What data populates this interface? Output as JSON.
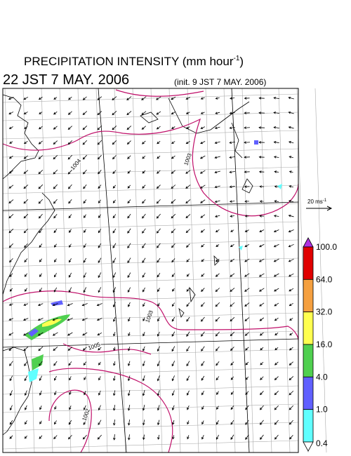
{
  "header": {
    "title": "PRECIPITATION INTENSITY (mm hour",
    "title_exponent": "-1",
    "title_close": ")",
    "valid_time": "22 JST 7 MAY. 2006",
    "init_time": "(init. 9 JST 7 MAY. 2006)"
  },
  "wind_legend": {
    "label": "20 ms",
    "exponent": "-1"
  },
  "colorbar": {
    "labels": [
      "100.0",
      "64.0",
      "32.0",
      "16.0",
      "4.0",
      "1.0",
      "0.4"
    ],
    "colors": [
      "#e00000",
      "#f5a040",
      "#ffff50",
      "#50d050",
      "#6060ff",
      "#60ffff"
    ],
    "over_color": "#b030e0",
    "under_color": "#ffffff"
  },
  "contours": {
    "labels": [
      "1004",
      "1003",
      "1003",
      "1005",
      "1002"
    ],
    "color": "#c0106a"
  }
}
